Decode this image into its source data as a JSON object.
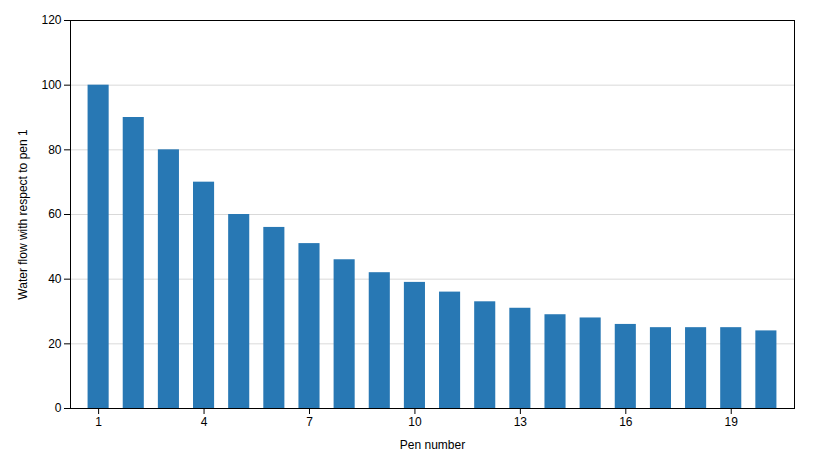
{
  "chart_data": {
    "type": "bar",
    "x": [
      1,
      2,
      3,
      4,
      5,
      6,
      7,
      8,
      9,
      10,
      11,
      12,
      13,
      14,
      15,
      16,
      17,
      18,
      19,
      20
    ],
    "values": [
      100,
      90,
      80,
      70,
      60,
      56,
      51,
      46,
      42,
      39,
      36,
      33,
      31,
      29,
      28,
      26,
      25,
      25,
      25,
      24
    ],
    "color": "#2878B4",
    "xlabel": "Pen number",
    "ylabel": "Water flow with respect to pen 1",
    "xlim": [
      0.2,
      20.8
    ],
    "xticks": [
      1,
      4,
      7,
      10,
      13,
      16,
      19
    ],
    "ylim": [
      0,
      120
    ],
    "yticks": [
      0,
      20,
      40,
      60,
      80,
      100,
      120
    ],
    "grid": true
  }
}
